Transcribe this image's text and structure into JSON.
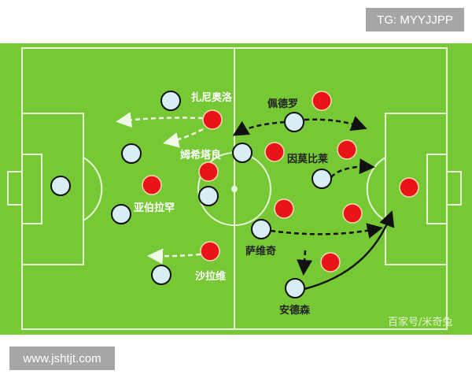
{
  "tag": "TG: MYYJJPP",
  "url": "www.jshtjt.com",
  "watermark": "百家号/米奇兔",
  "colors": {
    "pitch": "#76c834",
    "team_light": "#d6eef4",
    "team_red": "#e8141a"
  },
  "labels": {
    "zaniolo": "扎尼奥洛",
    "pedro": "佩德罗",
    "mkhitaryan": "姆希塔良",
    "immobile": "因莫比莱",
    "abraham": "亚伯拉罕",
    "savic": "萨维奇",
    "elshaarawy": "沙拉维",
    "andersen": "安德森"
  }
}
